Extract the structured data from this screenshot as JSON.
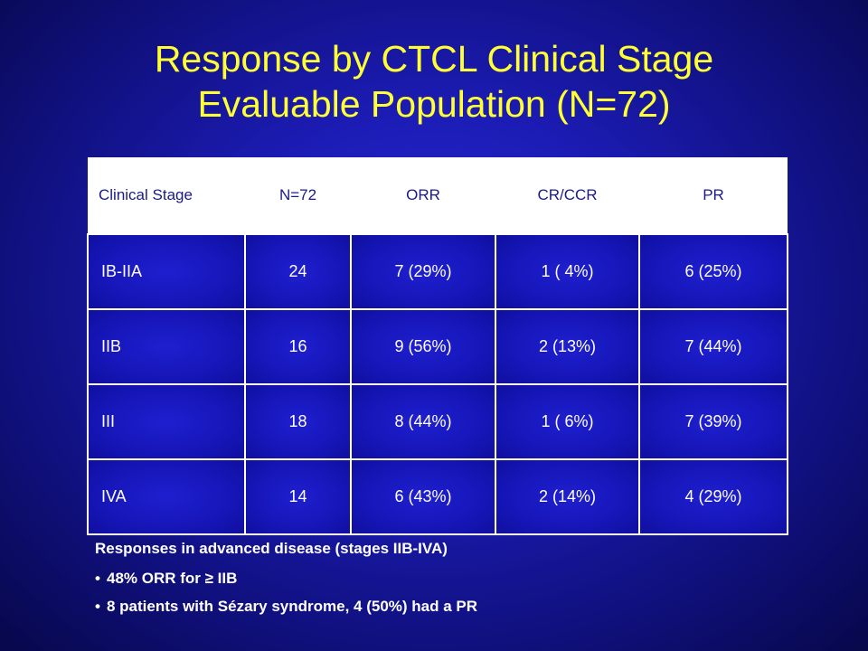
{
  "title": {
    "line1": "Response by CTCL Clinical Stage",
    "line2": "Evaluable Population (N=72)"
  },
  "table": {
    "headers": [
      "Clinical Stage",
      "N=72",
      "ORR",
      "CR/CCR",
      "PR"
    ],
    "rows": [
      [
        "IB-IIA",
        "24",
        "7 (29%)",
        "1 ( 4%)",
        "6 (25%)"
      ],
      [
        "IIB",
        "16",
        "9 (56%)",
        "2 (13%)",
        "7 (44%)"
      ],
      [
        "III",
        "18",
        "8 (44%)",
        "1 ( 6%)",
        "7 (39%)"
      ],
      [
        "IVA",
        "14",
        "6 (43%)",
        "2 (14%)",
        "4 (29%)"
      ]
    ]
  },
  "notes": {
    "heading": "Responses in advanced disease (stages IIB-IVA)",
    "bullets": [
      "48% ORR for ≥ IIB",
      "8 patients with Sézary syndrome, 4 (50%) had a PR"
    ],
    "bullet_symbol": "•"
  },
  "colors": {
    "title": "#ffff33",
    "background": "#1c1cb6",
    "header_bg": "#ffffff",
    "header_text": "#1a1a88",
    "body_text": "#ffffff"
  }
}
